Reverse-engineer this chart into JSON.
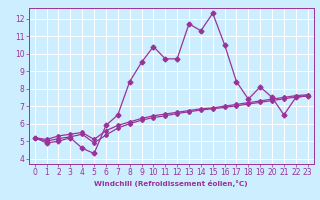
{
  "xlabel": "Windchill (Refroidissement éolien,°C)",
  "x_data": [
    0,
    1,
    2,
    3,
    4,
    5,
    6,
    7,
    8,
    9,
    10,
    11,
    12,
    13,
    14,
    15,
    16,
    17,
    18,
    19,
    20,
    21,
    22,
    23
  ],
  "line1_y": [
    5.2,
    4.9,
    5.0,
    5.2,
    4.6,
    4.3,
    5.9,
    6.5,
    8.4,
    9.5,
    10.4,
    9.7,
    9.7,
    11.7,
    11.3,
    12.3,
    10.5,
    8.4,
    7.4,
    8.1,
    7.5,
    6.5,
    7.5,
    7.6
  ],
  "line2_y": [
    5.2,
    5.1,
    5.3,
    5.4,
    5.5,
    5.1,
    5.6,
    5.9,
    6.1,
    6.3,
    6.45,
    6.55,
    6.65,
    6.75,
    6.85,
    6.9,
    7.0,
    7.1,
    7.2,
    7.3,
    7.4,
    7.5,
    7.6,
    7.65
  ],
  "line3_y": [
    5.2,
    5.0,
    5.15,
    5.25,
    5.4,
    4.9,
    5.35,
    5.75,
    6.0,
    6.2,
    6.35,
    6.45,
    6.58,
    6.68,
    6.78,
    6.85,
    6.93,
    7.02,
    7.12,
    7.22,
    7.32,
    7.42,
    7.52,
    7.58
  ],
  "line_color": "#993399",
  "bg_color": "#cceeff",
  "grid_color": "#ffffff",
  "ylim": [
    3.7,
    12.6
  ],
  "xlim": [
    -0.5,
    23.5
  ],
  "yticks": [
    4,
    5,
    6,
    7,
    8,
    9,
    10,
    11,
    12
  ],
  "xticks": [
    0,
    1,
    2,
    3,
    4,
    5,
    6,
    7,
    8,
    9,
    10,
    11,
    12,
    13,
    14,
    15,
    16,
    17,
    18,
    19,
    20,
    21,
    22,
    23
  ],
  "tick_fontsize": 5.5,
  "xlabel_fontsize": 5.2,
  "marker_size_main": 2.5,
  "marker_size_trend": 2.0,
  "linewidth": 0.9
}
